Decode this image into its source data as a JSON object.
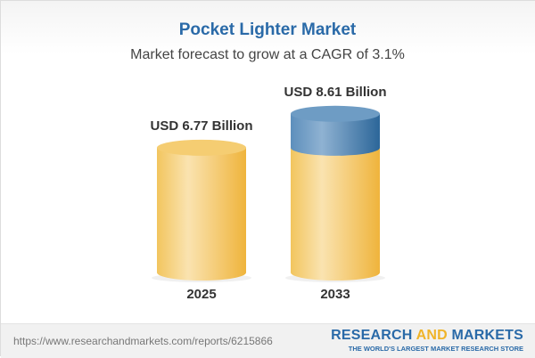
{
  "header": {
    "title": "Pocket Lighter Market",
    "subtitle": "Market forecast to grow at a CAGR of 3.1%"
  },
  "chart_data": {
    "type": "bar",
    "style": "3d-cylinder",
    "title": "Pocket Lighter Market",
    "subtitle": "Market forecast to grow at a CAGR of 3.1%",
    "categories": [
      "2025",
      "2033"
    ],
    "unit": "USD Billion",
    "series": [
      {
        "values": [
          6.77,
          8.61
        ]
      },
      {
        "key": "growth",
        "values": [
          0,
          1.84
        ]
      }
    ],
    "data_labels": [
      "USD 6.77 Billion",
      "USD 8.61 Billion"
    ],
    "grid": false,
    "colors": {
      "base": "#f3c55a",
      "growth": "#4f86b5"
    }
  },
  "footer": {
    "url": "https://www.researchandmarkets.com/reports/6215866",
    "logo_part1": "RESEARCH ",
    "logo_part2": "AND",
    "logo_part3": " MARKETS",
    "tagline": "THE WORLD'S LARGEST MARKET RESEARCH STORE"
  }
}
